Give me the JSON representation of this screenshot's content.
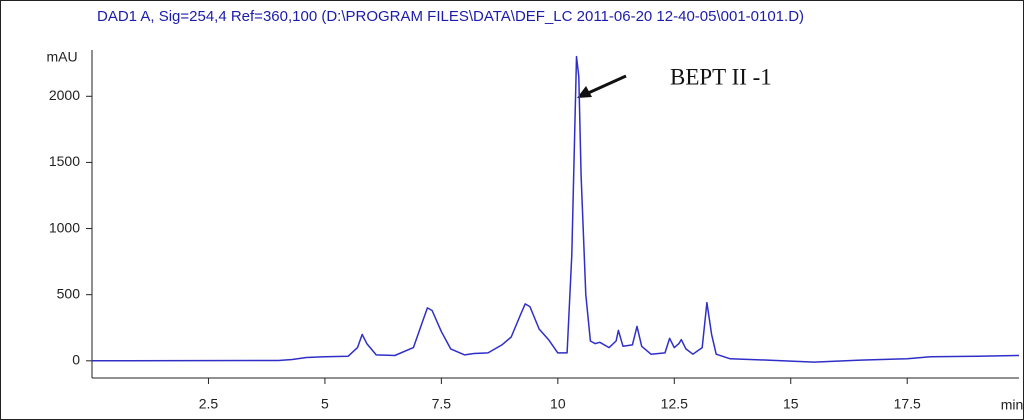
{
  "chart_data": {
    "type": "line",
    "title": "DAD1 A, Sig=254,4 Ref=360,100 (D:\\PROGRAM FILES\\DATA\\DEF_LC 2011-06-20 12-40-05\\001-0101.D)",
    "y_label": "mAU",
    "x_label": "min",
    "annotation": "BEPT II  -1",
    "color": "#2f2fc8",
    "x": [
      0,
      4.0,
      4.3,
      4.6,
      5.0,
      5.5,
      5.7,
      5.8,
      5.9,
      6.1,
      6.5,
      6.9,
      7.1,
      7.2,
      7.3,
      7.5,
      7.7,
      8.0,
      8.2,
      8.5,
      8.8,
      9.0,
      9.2,
      9.3,
      9.4,
      9.6,
      9.8,
      10.0,
      10.2,
      10.3,
      10.4,
      10.45,
      10.5,
      10.6,
      10.7,
      10.8,
      10.9,
      11.1,
      11.25,
      11.3,
      11.4,
      11.6,
      11.7,
      11.8,
      12.0,
      12.3,
      12.4,
      12.5,
      12.6,
      12.65,
      12.75,
      12.9,
      13.1,
      13.2,
      13.3,
      13.4,
      13.7,
      14.5,
      15.5,
      16.5,
      17.5,
      18.0,
      19.0,
      19.9
    ],
    "values": [
      0,
      2,
      10,
      25,
      30,
      35,
      100,
      200,
      130,
      45,
      40,
      100,
      300,
      400,
      380,
      220,
      90,
      45,
      55,
      60,
      120,
      180,
      350,
      430,
      410,
      240,
      160,
      60,
      60,
      800,
      2300,
      2150,
      1400,
      500,
      150,
      130,
      140,
      100,
      150,
      230,
      110,
      120,
      260,
      110,
      50,
      60,
      170,
      100,
      130,
      160,
      90,
      50,
      100,
      440,
      200,
      50,
      15,
      5,
      -10,
      5,
      15,
      30,
      35,
      40
    ],
    "xlim": [
      0,
      19.9
    ],
    "ylim": [
      -130,
      2350
    ],
    "xticks": [
      2.5,
      5,
      7.5,
      10,
      12.5,
      15,
      17.5
    ],
    "yticks": [
      0,
      500,
      1000,
      1500,
      2000
    ]
  }
}
